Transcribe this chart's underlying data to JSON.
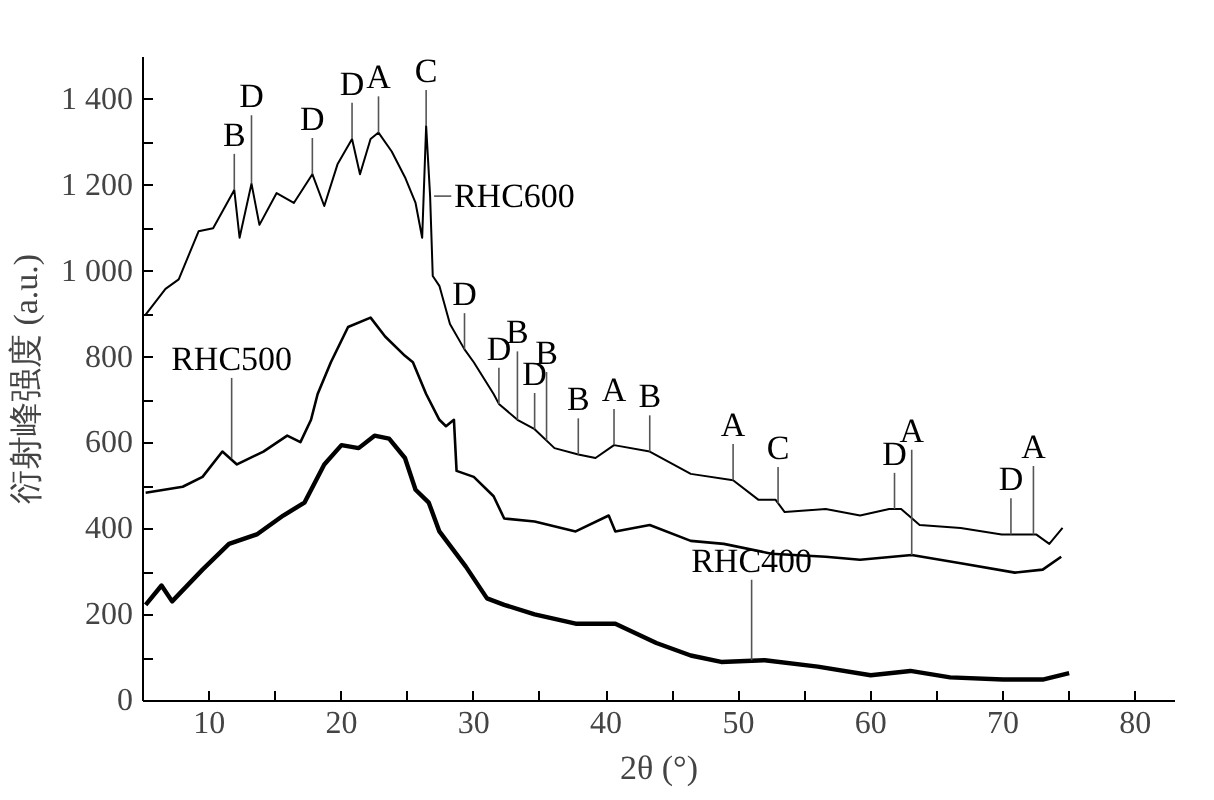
{
  "chart_data": {
    "type": "line",
    "xlabel": "2θ (°)",
    "ylabel": "衍射峰强度 (a.u.)",
    "xlim": [
      5,
      83
    ],
    "ylim": [
      0,
      1500
    ],
    "xticks": [
      {
        "value": 5,
        "label": null
      },
      10,
      {
        "value": 15,
        "label": null
      },
      20,
      {
        "value": 25,
        "label": null
      },
      30,
      {
        "value": 35,
        "label": null
      },
      40,
      {
        "value": 45,
        "label": null
      },
      50,
      {
        "value": 55,
        "label": null
      },
      60,
      {
        "value": 65,
        "label": null
      },
      70,
      {
        "value": 75,
        "label": null
      },
      80
    ],
    "yticks": [
      0,
      {
        "value": 100,
        "label": null
      },
      200,
      {
        "value": 300,
        "label": null
      },
      400,
      {
        "value": 500,
        "label": null
      },
      600,
      {
        "value": 700,
        "label": null
      },
      800,
      {
        "value": 900,
        "label": null
      },
      {
        "value": 1000,
        "label": "1 000"
      },
      {
        "value": 1100,
        "label": null
      },
      {
        "value": 1200,
        "label": "1 200"
      },
      {
        "value": 1300,
        "label": null
      },
      {
        "value": 1400,
        "label": "1 400"
      }
    ],
    "grid": false,
    "marker": "none",
    "line_style": "solid",
    "series": [
      {
        "color": "#000000",
        "x": [
          5.2,
          6.7,
          7.7,
          9.2,
          10.3,
          11.9,
          12.3,
          13.2,
          13.8,
          15.1,
          16.4,
          17.8,
          18.7,
          19.7,
          20.8,
          21.4,
          22.2,
          22.8,
          23.8,
          24.8,
          25.6,
          26.1,
          26.4,
          26.7,
          26.9,
          27.4,
          28.2,
          29.3,
          30.0,
          31.5,
          31.9,
          33.3,
          34.6,
          36.1,
          37.9,
          39.2,
          40.6,
          43.3,
          46.4,
          49.6,
          51.5,
          52.8,
          53.5,
          56.6,
          59.2,
          61.4,
          62.3,
          63.7,
          66.8,
          69.9,
          72.5,
          73.5,
          74.5
        ],
        "values": [
          900,
          960,
          982,
          1094,
          1101,
          1190,
          1079,
          1205,
          1109,
          1183,
          1160,
          1227,
          1153,
          1250,
          1309,
          1227,
          1309,
          1324,
          1280,
          1220,
          1160,
          1079,
          1339,
          1176,
          990,
          967,
          878,
          819,
          789,
          715,
          692,
          655,
          633,
          589,
          574,
          566,
          596,
          581,
          529,
          514,
          469,
          469,
          440,
          447,
          432,
          447,
          447,
          410,
          403,
          388,
          388,
          366,
          403
        ]
      },
      {
        "color": "#000000",
        "x": [
          5.2,
          8.0,
          9.5,
          11.0,
          12.1,
          14.1,
          15.9,
          16.9,
          17.7,
          18.2,
          19.2,
          20.5,
          22.2,
          23.3,
          24.8,
          25.4,
          26.4,
          27.4,
          27.9,
          28.5,
          28.7,
          30.0,
          31.5,
          32.3,
          34.6,
          37.7,
          40.2,
          40.7,
          43.3,
          46.4,
          48.9,
          52.5,
          56.6,
          59.2,
          63.1,
          66.8,
          70.9,
          73.0,
          74.4
        ],
        "values": [
          485,
          499,
          522,
          581,
          551,
          581,
          618,
          603,
          655,
          715,
          789,
          871,
          893,
          849,
          804,
          789,
          715,
          655,
          640,
          655,
          536,
          522,
          477,
          425,
          418,
          395,
          432,
          395,
          410,
          373,
          366,
          343,
          336,
          329,
          340,
          321,
          299,
          306,
          336
        ]
      },
      {
        "color": "#000000",
        "x": [
          5.2,
          6.4,
          7.2,
          9.5,
          11.5,
          13.6,
          15.6,
          17.2,
          18.7,
          20.0,
          21.3,
          22.5,
          23.6,
          24.8,
          25.6,
          26.6,
          27.4,
          29.4,
          31.0,
          32.3,
          34.6,
          37.7,
          40.7,
          43.8,
          46.4,
          48.7,
          52,
          56,
          60,
          63,
          66,
          70,
          73,
          75
        ],
        "values": [
          224,
          269,
          232,
          306,
          366,
          388,
          432,
          462,
          551,
          596,
          589,
          618,
          611,
          566,
          492,
          462,
          395,
          313,
          239,
          224,
          202,
          180,
          180,
          135,
          106,
          91,
          95,
          80,
          60,
          70,
          55,
          50,
          50,
          65
        ]
      }
    ],
    "annotations": [
      {
        "text": "RHC600",
        "x": 26.7,
        "y": 1176
      },
      {
        "text": "RHC500",
        "x": 11.7,
        "y": 565
      },
      {
        "text": "RHC400",
        "x": 51,
        "y": 95
      },
      {
        "text": "B",
        "x": 11.9,
        "y": 1190
      },
      {
        "text": "D",
        "x": 13.2,
        "y": 1205
      },
      {
        "text": "D",
        "x": 17.8,
        "y": 1227
      },
      {
        "text": "D",
        "x": 20.8,
        "y": 1309
      },
      {
        "text": "A",
        "x": 22.8,
        "y": 1324
      },
      {
        "text": "C",
        "x": 26.4,
        "y": 1339
      },
      {
        "text": "D",
        "x": 29.3,
        "y": 819
      },
      {
        "text": "D",
        "x": 31.9,
        "y": 692
      },
      {
        "text": "B",
        "x": 33.3,
        "y": 655
      },
      {
        "text": "D",
        "x": 34.6,
        "y": 633
      },
      {
        "text": "B",
        "x": 35.5,
        "y": 607
      },
      {
        "text": "B",
        "x": 37.9,
        "y": 574
      },
      {
        "text": "A",
        "x": 40.6,
        "y": 596
      },
      {
        "text": "B",
        "x": 43.3,
        "y": 581
      },
      {
        "text": "A",
        "x": 49.6,
        "y": 514
      },
      {
        "text": "C",
        "x": 53.0,
        "y": 460
      },
      {
        "text": "D",
        "x": 61.8,
        "y": 447
      },
      {
        "text": "A",
        "x": 63.1,
        "y": 340
      },
      {
        "text": "D",
        "x": 70.6,
        "y": 388
      },
      {
        "text": "A",
        "x": 72.3,
        "y": 388
      }
    ]
  }
}
